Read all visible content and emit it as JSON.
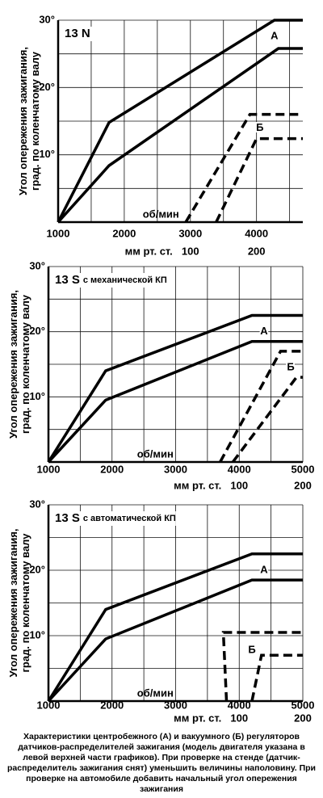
{
  "chart_data": [
    {
      "type": "line",
      "title": "13 N",
      "ylabel": [
        "Угол опережения зажигания,",
        "град. по коленчатому валу"
      ],
      "xlabel": "об/мин",
      "x2label": "мм рт. ст.",
      "xlim": [
        1000,
        4700
      ],
      "xticks": [
        1000,
        2000,
        3000,
        4000
      ],
      "x2lim": [
        -100,
        270
      ],
      "x2ticks": [
        100,
        200
      ],
      "ylim": [
        0,
        30
      ],
      "yticks": [
        {
          "value": 10,
          "label": "10°"
        },
        {
          "value": 20,
          "label": "20°"
        },
        {
          "value": 30,
          "label": "30°"
        }
      ],
      "grid": true,
      "series": [
        {
          "color": "#000000",
          "style": "solid",
          "x": [
            1000,
            1770,
            4270,
            4700
          ],
          "values": [
            0,
            14.8,
            30,
            30
          ]
        },
        {
          "color": "#000000",
          "style": "solid",
          "x": [
            1000,
            1770,
            4330,
            4700
          ],
          "values": [
            0,
            8.4,
            25.8,
            25.8
          ]
        },
        {
          "color": "#000000",
          "style": "dashed",
          "axis": "x2",
          "x": [
            93,
            190,
            270
          ],
          "values": [
            0,
            16,
            16
          ]
        },
        {
          "color": "#000000",
          "style": "dashed",
          "axis": "x2",
          "x": [
            139,
            200,
            270
          ],
          "values": [
            0,
            12.4,
            12.4
          ]
        }
      ],
      "annotations": [
        {
          "text": "А",
          "x": 4270,
          "y": 27.6
        },
        {
          "text": "Б",
          "x": 4050,
          "y": 14
        }
      ]
    },
    {
      "type": "line",
      "title": "13 S",
      "subtitle": "с механической КП",
      "ylabel": [
        "Угол опережения зажигания,",
        "град. по коленчатому валу"
      ],
      "xlabel": "об/мин",
      "x2label": "мм рт. ст.",
      "xlim": [
        1000,
        5000
      ],
      "xticks": [
        1000,
        2000,
        3000,
        4000,
        5000
      ],
      "x2lim": [
        -200,
        200
      ],
      "x2ticks": [
        100,
        200
      ],
      "ylim": [
        0,
        30
      ],
      "yticks": [
        {
          "value": 10,
          "label": "10°"
        },
        {
          "value": 20,
          "label": "20°"
        },
        {
          "value": 30,
          "label": "30°"
        }
      ],
      "grid": true,
      "series": [
        {
          "color": "#000000",
          "style": "solid",
          "x": [
            1000,
            1900,
            4200,
            5000
          ],
          "values": [
            0,
            14,
            22.5,
            22.5
          ]
        },
        {
          "color": "#000000",
          "style": "solid",
          "x": [
            1000,
            1900,
            4200,
            5000
          ],
          "values": [
            0,
            9.5,
            18.5,
            18.5
          ]
        },
        {
          "color": "#000000",
          "style": "dashed",
          "axis": "x2",
          "x": [
            70,
            165,
            200
          ],
          "values": [
            0,
            17,
            17
          ]
        },
        {
          "color": "#000000",
          "style": "dashed",
          "axis": "x2",
          "x": [
            90,
            190,
            200
          ],
          "values": [
            0,
            13,
            13
          ]
        }
      ],
      "annotations": [
        {
          "text": "А",
          "x": 4390,
          "y": 20
        },
        {
          "text": "Б",
          "x": 4810,
          "y": 14.5
        }
      ]
    },
    {
      "type": "line",
      "title": "13 S",
      "subtitle": "с автоматической КП",
      "ylabel": [
        "Угол опережения зажигания,",
        "град. по коленчатому валу"
      ],
      "xlabel": "об/мин",
      "x2label": "мм рт. ст.",
      "xlim": [
        1000,
        5000
      ],
      "xticks": [
        1000,
        2000,
        3000,
        4000,
        5000
      ],
      "x2lim": [
        -200,
        200
      ],
      "x2ticks": [
        100,
        200
      ],
      "ylim": [
        0,
        30
      ],
      "yticks": [
        {
          "value": 10,
          "label": "10°"
        },
        {
          "value": 20,
          "label": "20°"
        },
        {
          "value": 30,
          "label": "30°"
        }
      ],
      "grid": true,
      "series": [
        {
          "color": "#000000",
          "style": "solid",
          "x": [
            1000,
            1900,
            4200,
            5000
          ],
          "values": [
            0,
            14,
            22.5,
            22.5
          ]
        },
        {
          "color": "#000000",
          "style": "solid",
          "x": [
            1000,
            1900,
            4200,
            5000
          ],
          "values": [
            0,
            9.5,
            18.5,
            18.5
          ]
        },
        {
          "color": "#000000",
          "style": "dashed",
          "axis": "x2",
          "x": [
            80,
            75,
            200
          ],
          "values": [
            0,
            10.5,
            10.5
          ]
        },
        {
          "color": "#000000",
          "style": "dashed",
          "axis": "x2",
          "x": [
            120,
            135,
            200
          ],
          "values": [
            0,
            7,
            7
          ]
        }
      ],
      "annotations": [
        {
          "text": "А",
          "x": 4390,
          "y": 20
        },
        {
          "text": "Б",
          "x": 4200,
          "y": 7.8
        }
      ]
    }
  ],
  "caption": "Характеристики центробежного (А) и вакуумного (Б) регуляторов датчиков-распределителей зажигания (модель двигателя указана в левой верхней части графиков). При проверке на стенде (датчик-распределитель зажигания снят) уменьшить величины наполовину. При проверке на автомобиле добавить начальный угол опережения зажигания"
}
